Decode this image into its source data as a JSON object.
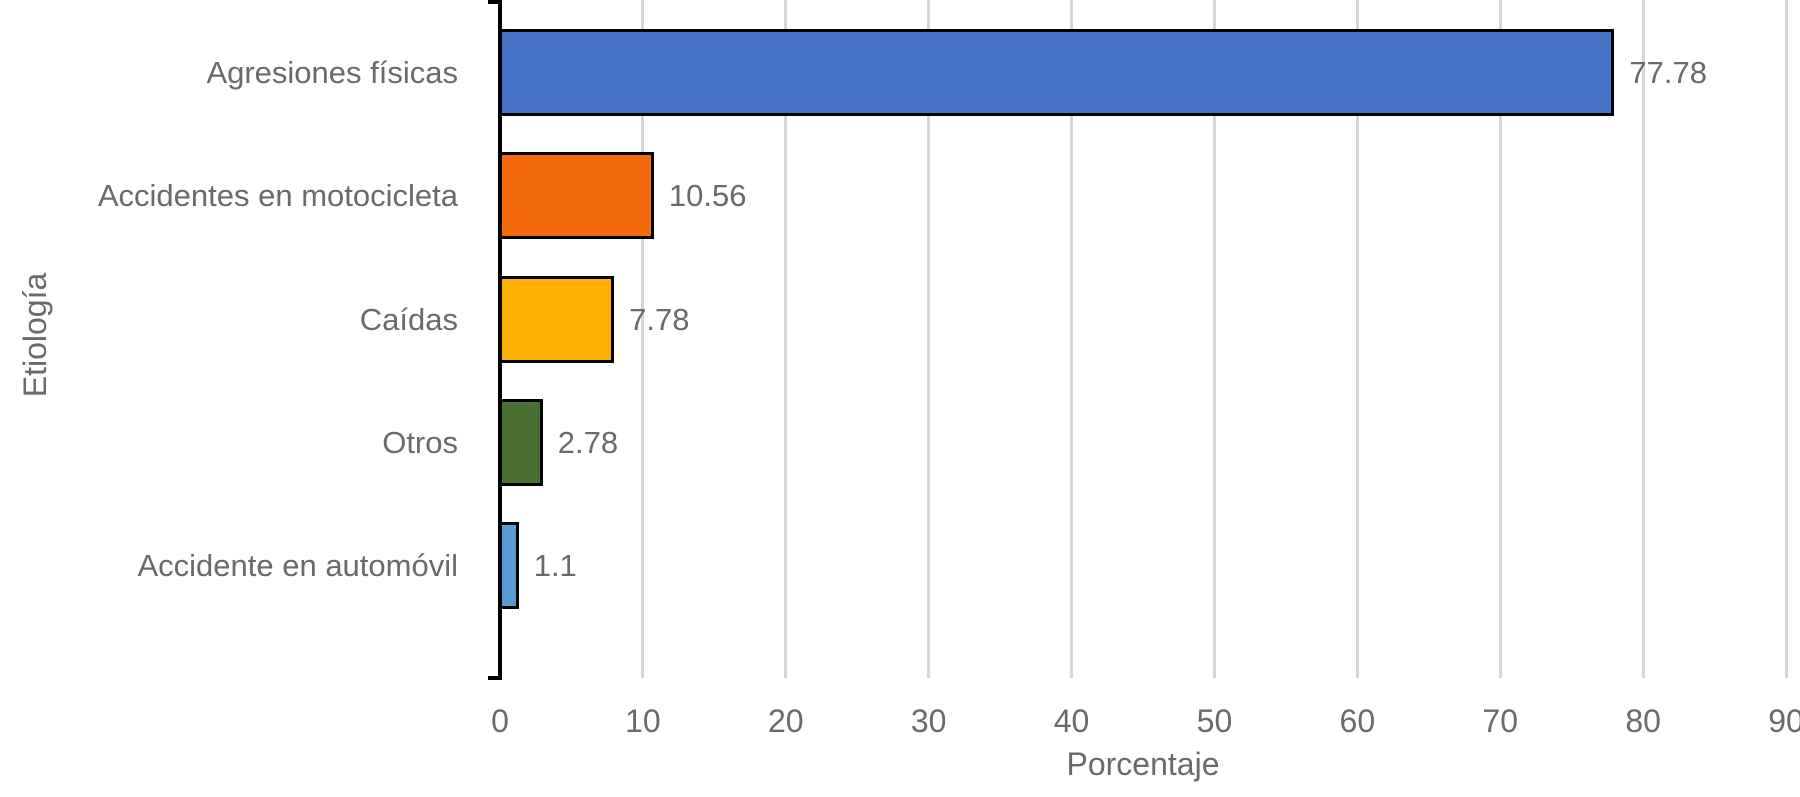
{
  "chart_data": {
    "type": "bar",
    "orientation": "horizontal",
    "title": "",
    "xlabel": "Porcentaje",
    "ylabel": "Etiología",
    "categories": [
      "Agresiones físicas",
      "Accidentes en motocicleta",
      "Caídas",
      "Otros",
      "Accidente en automóvil"
    ],
    "values": [
      77.78,
      10.56,
      7.78,
      2.78,
      1.1
    ],
    "value_labels": [
      "77.78",
      "10.56",
      "7.78",
      "2.78",
      "1.1"
    ],
    "series": [
      {
        "name": "Porcentaje",
        "values": [
          77.78,
          10.56,
          7.78,
          2.78,
          1.1
        ]
      }
    ],
    "bar_colors": [
      "#4472C4",
      "#F4690B",
      "#FFB000",
      "#497031",
      "#5B9BD5"
    ],
    "bar_border_color": "#000000",
    "xlim": [
      0,
      90
    ],
    "xticks": [
      0,
      10,
      20,
      30,
      40,
      50,
      60,
      70,
      80,
      90
    ],
    "grid": true,
    "gridline_color": "#D6D6D6",
    "axis_color": "#000000",
    "text_color": "#6A6A6A",
    "legend": null
  }
}
